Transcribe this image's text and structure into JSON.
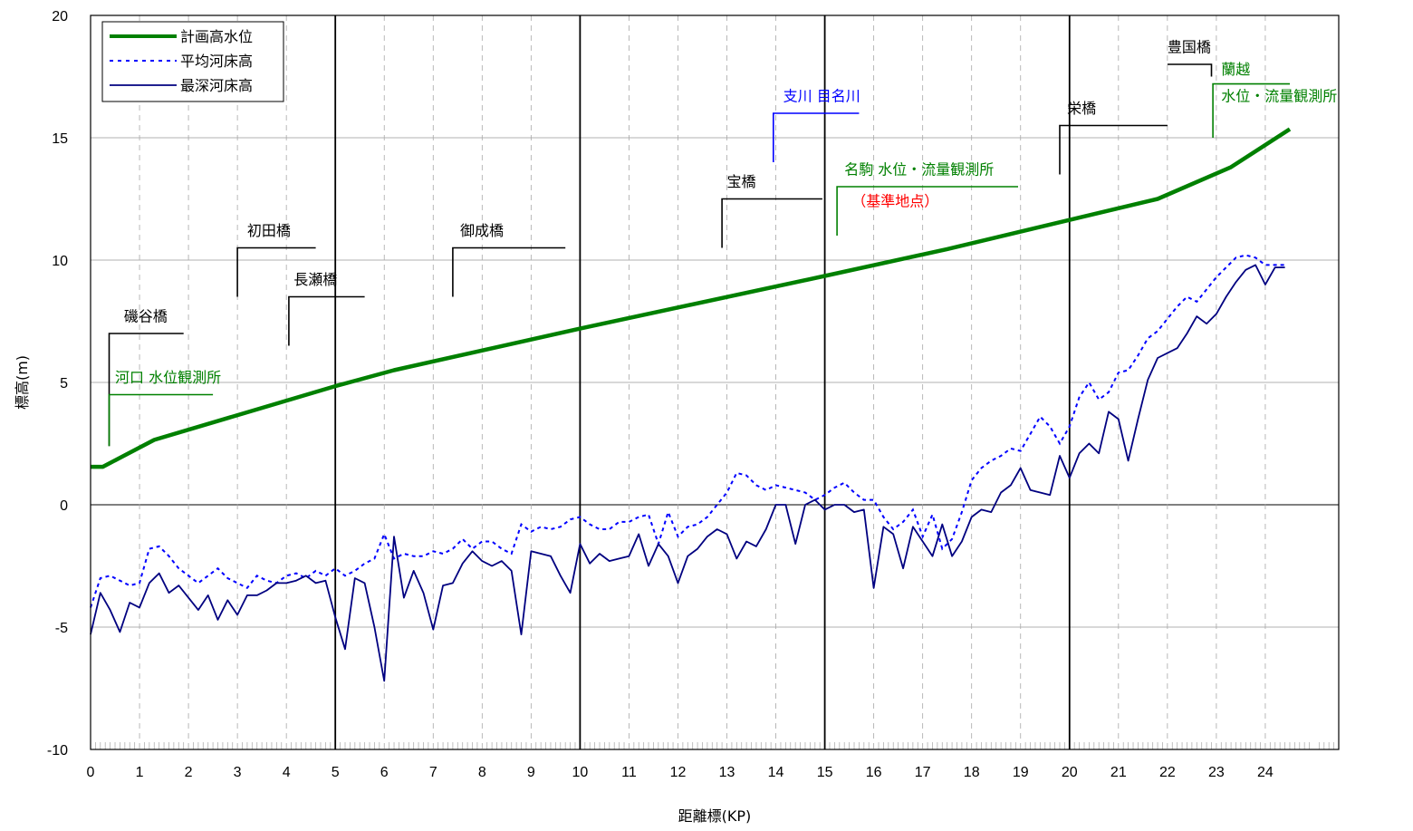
{
  "chart_data": {
    "type": "line",
    "title": "",
    "xlabel": "距離標(KP)",
    "ylabel": "標高(m)",
    "xlim": [
      0,
      25.5
    ],
    "ylim": [
      -10,
      20
    ],
    "xticks": [
      0,
      1,
      2,
      3,
      4,
      5,
      6,
      7,
      8,
      9,
      10,
      11,
      12,
      13,
      14,
      15,
      16,
      17,
      18,
      19,
      20,
      21,
      22,
      23,
      24
    ],
    "yticks": [
      -10,
      -5,
      0,
      5,
      10,
      15,
      20
    ],
    "grid": true,
    "legend_position": "top-left",
    "colors": {
      "planned": "#008000",
      "avg": "#0000ff",
      "deep": "#000080",
      "annotation_black": "#000000",
      "annotation_green": "#008000",
      "annotation_blue": "#0000ff",
      "annotation_red": "#ff0000"
    },
    "series": [
      {
        "name": "計画高水位",
        "style": "thick-solid",
        "x": [
          0,
          0.25,
          1.3,
          5.0,
          6.2,
          10.0,
          15.0,
          17.5,
          21.8,
          23.3,
          24.5
        ],
        "values": [
          1.55,
          1.55,
          2.65,
          4.85,
          5.5,
          7.2,
          9.35,
          10.45,
          12.5,
          13.8,
          15.35
        ]
      },
      {
        "name": "平均河床高",
        "style": "dotted",
        "x": [
          0,
          0.2,
          0.4,
          0.6,
          0.8,
          1.0,
          1.2,
          1.4,
          1.6,
          1.8,
          2.0,
          2.2,
          2.4,
          2.6,
          2.8,
          3.0,
          3.2,
          3.4,
          3.6,
          3.8,
          4.0,
          4.2,
          4.4,
          4.6,
          4.8,
          5.0,
          5.2,
          5.4,
          5.6,
          5.8,
          6.0,
          6.2,
          6.4,
          6.6,
          6.8,
          7.0,
          7.2,
          7.4,
          7.6,
          7.8,
          8.0,
          8.2,
          8.4,
          8.6,
          8.8,
          9.0,
          9.2,
          9.4,
          9.6,
          9.8,
          10.0,
          10.2,
          10.4,
          10.6,
          10.8,
          11.0,
          11.2,
          11.4,
          11.6,
          11.8,
          12.0,
          12.2,
          12.4,
          12.6,
          12.8,
          13.0,
          13.2,
          13.4,
          13.6,
          13.8,
          14.0,
          14.2,
          14.4,
          14.6,
          14.8,
          15.0,
          15.2,
          15.4,
          15.6,
          15.8,
          16.0,
          16.2,
          16.4,
          16.6,
          16.8,
          17.0,
          17.2,
          17.4,
          17.6,
          17.8,
          18.0,
          18.2,
          18.4,
          18.6,
          18.8,
          19.0,
          19.2,
          19.4,
          19.6,
          19.8,
          20.0,
          20.2,
          20.4,
          20.6,
          20.8,
          21.0,
          21.2,
          21.4,
          21.6,
          21.8,
          22.0,
          22.2,
          22.4,
          22.6,
          22.8,
          23.0,
          23.2,
          23.4,
          23.6,
          23.8,
          24.0,
          24.2,
          24.4
        ],
        "values": [
          -4.2,
          -3.0,
          -2.9,
          -3.1,
          -3.3,
          -3.2,
          -1.8,
          -1.7,
          -2.1,
          -2.6,
          -2.9,
          -3.2,
          -2.9,
          -2.6,
          -3.0,
          -3.2,
          -3.4,
          -2.9,
          -3.1,
          -3.2,
          -2.9,
          -2.8,
          -3.0,
          -2.7,
          -2.9,
          -2.6,
          -2.9,
          -2.7,
          -2.4,
          -2.2,
          -1.2,
          -2.2,
          -2.0,
          -2.1,
          -2.1,
          -1.9,
          -2.0,
          -1.8,
          -1.4,
          -1.8,
          -1.5,
          -1.5,
          -1.8,
          -2.0,
          -0.8,
          -1.1,
          -0.9,
          -1.0,
          -0.9,
          -0.6,
          -0.5,
          -0.8,
          -1.0,
          -1.0,
          -0.7,
          -0.7,
          -0.5,
          -0.4,
          -1.6,
          -0.3,
          -1.3,
          -0.9,
          -0.8,
          -0.5,
          0.0,
          0.5,
          1.3,
          1.2,
          0.8,
          0.6,
          0.8,
          0.7,
          0.6,
          0.5,
          0.2,
          0.4,
          0.7,
          0.9,
          0.5,
          0.2,
          0.2,
          -0.5,
          -1.0,
          -0.7,
          -0.2,
          -1.3,
          -0.4,
          -1.8,
          -1.4,
          -0.3,
          1.0,
          1.5,
          1.8,
          2.0,
          2.3,
          2.2,
          2.9,
          3.6,
          3.2,
          2.5,
          3.2,
          4.4,
          5.0,
          4.3,
          4.6,
          5.4,
          5.5,
          6.1,
          6.8,
          7.1,
          7.6,
          8.1,
          8.5,
          8.3,
          8.8,
          9.3,
          9.7,
          10.1,
          10.2,
          10.1,
          9.8,
          9.8,
          9.8
        ]
      },
      {
        "name": "最深河床高",
        "style": "solid",
        "x": [
          0,
          0.2,
          0.4,
          0.6,
          0.8,
          1.0,
          1.2,
          1.4,
          1.6,
          1.8,
          2.0,
          2.2,
          2.4,
          2.6,
          2.8,
          3.0,
          3.2,
          3.4,
          3.6,
          3.8,
          4.0,
          4.2,
          4.4,
          4.6,
          4.8,
          5.0,
          5.2,
          5.4,
          5.6,
          5.8,
          6.0,
          6.2,
          6.4,
          6.6,
          6.8,
          7.0,
          7.2,
          7.4,
          7.6,
          7.8,
          8.0,
          8.2,
          8.4,
          8.6,
          8.8,
          9.0,
          9.2,
          9.4,
          9.6,
          9.8,
          10.0,
          10.2,
          10.4,
          10.6,
          10.8,
          11.0,
          11.2,
          11.4,
          11.6,
          11.8,
          12.0,
          12.2,
          12.4,
          12.6,
          12.8,
          13.0,
          13.2,
          13.4,
          13.6,
          13.8,
          14.0,
          14.2,
          14.4,
          14.6,
          14.8,
          15.0,
          15.2,
          15.4,
          15.6,
          15.8,
          16.0,
          16.2,
          16.4,
          16.6,
          16.8,
          17.0,
          17.2,
          17.4,
          17.6,
          17.8,
          18.0,
          18.2,
          18.4,
          18.6,
          18.8,
          19.0,
          19.2,
          19.4,
          19.6,
          19.8,
          20.0,
          20.2,
          20.4,
          20.6,
          20.8,
          21.0,
          21.2,
          21.4,
          21.6,
          21.8,
          22.0,
          22.2,
          22.4,
          22.6,
          22.8,
          23.0,
          23.2,
          23.4,
          23.6,
          23.8,
          24.0,
          24.2,
          24.4
        ],
        "values": [
          -5.3,
          -3.6,
          -4.3,
          -5.2,
          -4.0,
          -4.2,
          -3.2,
          -2.8,
          -3.6,
          -3.3,
          -3.8,
          -4.3,
          -3.7,
          -4.7,
          -3.9,
          -4.5,
          -3.7,
          -3.7,
          -3.5,
          -3.2,
          -3.2,
          -3.1,
          -2.9,
          -3.2,
          -3.1,
          -4.6,
          -5.9,
          -3.0,
          -3.2,
          -5.0,
          -7.2,
          -1.3,
          -3.8,
          -2.7,
          -3.6,
          -5.1,
          -3.3,
          -3.2,
          -2.4,
          -1.9,
          -2.3,
          -2.5,
          -2.3,
          -2.7,
          -5.3,
          -1.9,
          -2.0,
          -2.1,
          -2.9,
          -3.6,
          -1.6,
          -2.4,
          -2.0,
          -2.3,
          -2.2,
          -2.1,
          -1.2,
          -2.5,
          -1.6,
          -2.1,
          -3.2,
          -2.1,
          -1.8,
          -1.3,
          -1.0,
          -1.2,
          -2.2,
          -1.5,
          -1.7,
          -1.0,
          0.0,
          0.0,
          -1.6,
          0.0,
          0.2,
          -0.2,
          0.0,
          0.0,
          -0.3,
          -0.2,
          -3.4,
          -0.9,
          -1.2,
          -2.6,
          -0.9,
          -1.5,
          -2.1,
          -0.8,
          -2.1,
          -1.5,
          -0.5,
          -0.2,
          -0.3,
          0.5,
          0.8,
          1.5,
          0.6,
          0.5,
          0.4,
          2.0,
          1.1,
          2.1,
          2.5,
          2.1,
          3.8,
          3.5,
          1.8,
          3.5,
          5.1,
          6.0,
          6.2,
          6.4,
          7.0,
          7.7,
          7.4,
          7.8,
          8.5,
          9.1,
          9.6,
          9.8,
          9.0,
          9.7,
          9.7
        ]
      }
    ],
    "annotations": [
      {
        "text": "磯谷橋",
        "color": "black"
      },
      {
        "text": "河口  水位観測所",
        "color": "green"
      },
      {
        "text": "初田橋",
        "color": "black"
      },
      {
        "text": "長瀬橋",
        "color": "black"
      },
      {
        "text": "御成橋",
        "color": "black"
      },
      {
        "text": "宝橋",
        "color": "black"
      },
      {
        "text": "支川  目名川",
        "color": "blue"
      },
      {
        "text": "名駒  水位・流量観測所",
        "color": "green"
      },
      {
        "text": "（基準地点）",
        "color": "red"
      },
      {
        "text": "栄橋",
        "color": "black"
      },
      {
        "text": "豊国橋",
        "color": "black"
      },
      {
        "text": "蘭越",
        "color": "green"
      },
      {
        "text": "水位・流量観測所",
        "color": "green"
      }
    ]
  }
}
